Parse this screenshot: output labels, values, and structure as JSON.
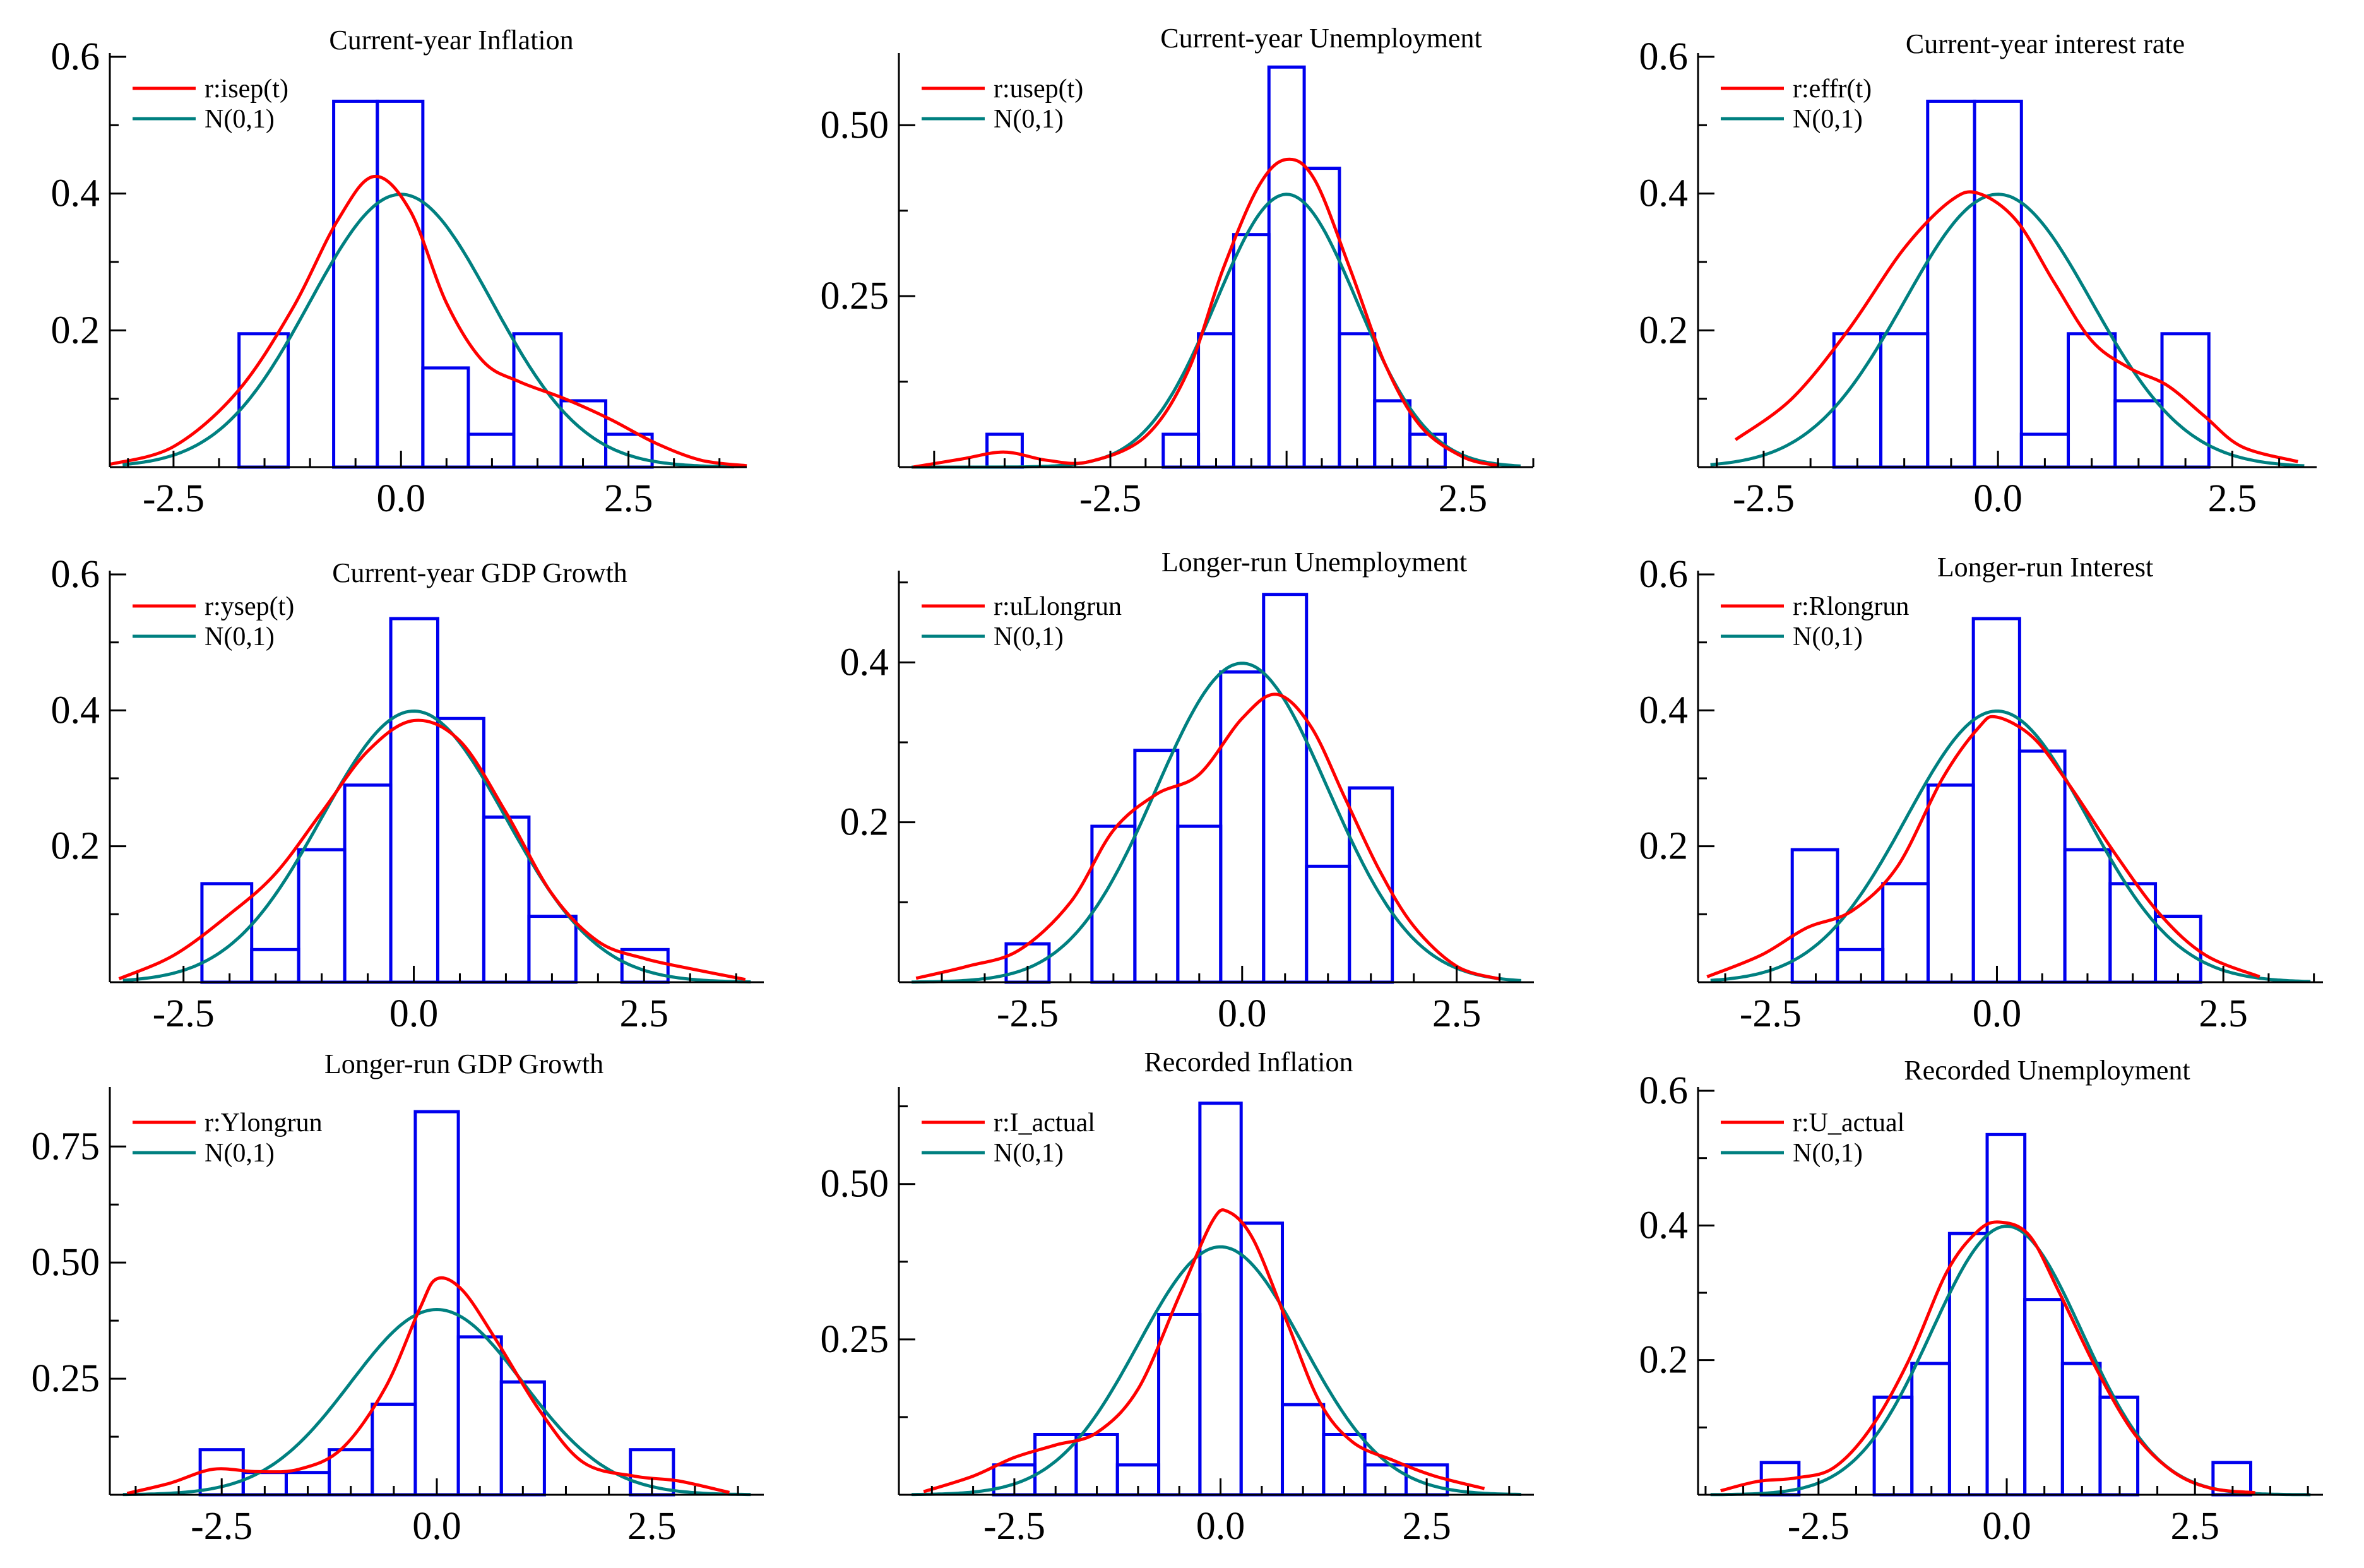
{
  "colors": {
    "histogram": "#0000ee",
    "density": "#ff0000",
    "normal": "#008080"
  },
  "chart_data": [
    {
      "type": "bar",
      "title": "Current-year Inflation",
      "xlim": [
        -3.2,
        3.8
      ],
      "ylim": [
        0,
        0.6
      ],
      "xticks": [
        -2.5,
        0.0,
        2.5
      ],
      "xtick_labels": [
        "-2.5",
        "0.0",
        "2.5"
      ],
      "yticks": [
        0.2,
        0.4,
        0.6
      ],
      "ytick_labels": [
        "0.2",
        "0.4",
        "0.6"
      ],
      "legend": [
        "r:isep(t)",
        "N(0,1)"
      ],
      "bins": [
        [
          -1.78,
          -1.24,
          0.195
        ],
        [
          -1.24,
          -0.74,
          0.0
        ],
        [
          -0.74,
          -0.26,
          0.535
        ],
        [
          -0.26,
          0.24,
          0.535
        ],
        [
          0.24,
          0.74,
          0.145
        ],
        [
          0.74,
          1.24,
          0.048
        ],
        [
          1.24,
          1.76,
          0.195
        ],
        [
          1.76,
          2.25,
          0.097
        ],
        [
          2.25,
          2.76,
          0.048
        ]
      ],
      "density": [
        [
          -3.2,
          0.004
        ],
        [
          -2.5,
          0.03
        ],
        [
          -1.8,
          0.11
        ],
        [
          -1.2,
          0.23
        ],
        [
          -0.7,
          0.36
        ],
        [
          -0.3,
          0.425
        ],
        [
          0.1,
          0.375
        ],
        [
          0.5,
          0.24
        ],
        [
          0.9,
          0.155
        ],
        [
          1.3,
          0.125
        ],
        [
          1.8,
          0.1
        ],
        [
          2.3,
          0.07
        ],
        [
          2.8,
          0.035
        ],
        [
          3.3,
          0.01
        ],
        [
          3.8,
          0.002
        ]
      ]
    },
    {
      "type": "bar",
      "title": "Current-year Unemployment",
      "xlim": [
        -5.5,
        3.5
      ],
      "ylim": [
        0,
        0.6
      ],
      "xticks": [
        -2.5,
        2.5
      ],
      "xtick_labels": [
        "-2.5",
        "2.5"
      ],
      "yticks": [
        0.25,
        0.5
      ],
      "ytick_labels": [
        "0.25",
        "0.50"
      ],
      "legend": [
        "r:usep(t)",
        "N(0,1)"
      ],
      "bins": [
        [
          -4.25,
          -3.75,
          0.048
        ],
        [
          -1.75,
          -1.25,
          0.048
        ],
        [
          -1.25,
          -0.75,
          0.195
        ],
        [
          -0.75,
          -0.25,
          0.34
        ],
        [
          -0.25,
          0.25,
          0.585
        ],
        [
          0.25,
          0.75,
          0.437
        ],
        [
          0.75,
          1.25,
          0.195
        ],
        [
          1.25,
          1.75,
          0.097
        ],
        [
          1.75,
          2.25,
          0.048
        ]
      ],
      "density": [
        [
          -5.3,
          0.0
        ],
        [
          -4.6,
          0.012
        ],
        [
          -4.0,
          0.022
        ],
        [
          -3.4,
          0.01
        ],
        [
          -2.8,
          0.008
        ],
        [
          -2.0,
          0.045
        ],
        [
          -1.4,
          0.14
        ],
        [
          -0.9,
          0.29
        ],
        [
          -0.4,
          0.41
        ],
        [
          0.0,
          0.45
        ],
        [
          0.4,
          0.42
        ],
        [
          0.9,
          0.29
        ],
        [
          1.4,
          0.15
        ],
        [
          1.9,
          0.06
        ],
        [
          2.5,
          0.015
        ],
        [
          3.0,
          0.002
        ]
      ]
    },
    {
      "type": "bar",
      "title": "Current-year interest rate",
      "xlim": [
        -3.2,
        3.4
      ],
      "ylim": [
        0,
        0.6
      ],
      "xticks": [
        -2.5,
        0.0,
        2.5
      ],
      "xtick_labels": [
        "-2.5",
        "0.0",
        "2.5"
      ],
      "yticks": [
        0.2,
        0.4,
        0.6
      ],
      "ytick_labels": [
        "0.2",
        "0.4",
        "0.6"
      ],
      "legend": [
        "r:effr(t)",
        "N(0,1)"
      ],
      "bins": [
        [
          -1.75,
          -1.25,
          0.195
        ],
        [
          -1.25,
          -0.75,
          0.195
        ],
        [
          -0.75,
          -0.25,
          0.535
        ],
        [
          -0.25,
          0.25,
          0.535
        ],
        [
          0.25,
          0.75,
          0.048
        ],
        [
          0.75,
          1.25,
          0.195
        ],
        [
          1.25,
          1.75,
          0.097
        ],
        [
          1.75,
          2.25,
          0.195
        ]
      ],
      "density": [
        [
          -2.8,
          0.04
        ],
        [
          -2.2,
          0.1
        ],
        [
          -1.6,
          0.2
        ],
        [
          -1.0,
          0.32
        ],
        [
          -0.5,
          0.39
        ],
        [
          -0.2,
          0.4
        ],
        [
          0.2,
          0.36
        ],
        [
          0.6,
          0.27
        ],
        [
          1.0,
          0.185
        ],
        [
          1.4,
          0.145
        ],
        [
          1.8,
          0.12
        ],
        [
          2.2,
          0.075
        ],
        [
          2.6,
          0.03
        ],
        [
          3.2,
          0.008
        ]
      ]
    },
    {
      "type": "bar",
      "title": "Current-year GDP Growth",
      "xlim": [
        -3.3,
        3.8
      ],
      "ylim": [
        0,
        0.6
      ],
      "xticks": [
        -2.5,
        0.0,
        2.5
      ],
      "xtick_labels": [
        "-2.5",
        "0.0",
        "2.5"
      ],
      "yticks": [
        0.2,
        0.4,
        0.6
      ],
      "ytick_labels": [
        "0.2",
        "0.4",
        "0.6"
      ],
      "legend": [
        "r:ysep(t)",
        "N(0,1)"
      ],
      "bins": [
        [
          -2.3,
          -1.76,
          0.145
        ],
        [
          -1.76,
          -1.25,
          0.048
        ],
        [
          -1.25,
          -0.75,
          0.195
        ],
        [
          -0.75,
          -0.25,
          0.29
        ],
        [
          -0.25,
          0.26,
          0.535
        ],
        [
          0.26,
          0.76,
          0.388
        ],
        [
          0.76,
          1.25,
          0.243
        ],
        [
          1.25,
          1.76,
          0.097
        ],
        [
          1.76,
          2.26,
          0.0
        ],
        [
          2.26,
          2.76,
          0.048
        ]
      ],
      "density": [
        [
          -3.2,
          0.005
        ],
        [
          -2.6,
          0.04
        ],
        [
          -2.0,
          0.1
        ],
        [
          -1.5,
          0.16
        ],
        [
          -1.0,
          0.25
        ],
        [
          -0.5,
          0.34
        ],
        [
          0.0,
          0.385
        ],
        [
          0.5,
          0.355
        ],
        [
          1.0,
          0.25
        ],
        [
          1.5,
          0.13
        ],
        [
          2.0,
          0.06
        ],
        [
          2.5,
          0.035
        ],
        [
          3.0,
          0.02
        ],
        [
          3.6,
          0.004
        ]
      ]
    },
    {
      "type": "bar",
      "title": "Longer-run Unemployment",
      "xlim": [
        -4.0,
        3.4
      ],
      "ylim": [
        0,
        0.51
      ],
      "xticks": [
        -2.5,
        0.0,
        2.5
      ],
      "xtick_labels": [
        "-2.5",
        "0.0",
        "2.5"
      ],
      "yticks": [
        0.2,
        0.4
      ],
      "ytick_labels": [
        "0.2",
        "0.4"
      ],
      "legend": [
        "r:uLlongrun",
        "N(0,1)"
      ],
      "bins": [
        [
          -2.75,
          -2.25,
          0.048
        ],
        [
          -2.25,
          -1.75,
          0.0
        ],
        [
          -1.75,
          -1.25,
          0.195
        ],
        [
          -1.25,
          -0.75,
          0.29
        ],
        [
          -0.75,
          -0.25,
          0.195
        ],
        [
          -0.25,
          0.25,
          0.388
        ],
        [
          0.25,
          0.75,
          0.485
        ],
        [
          0.75,
          1.25,
          0.145
        ],
        [
          1.25,
          1.75,
          0.243
        ]
      ],
      "density": [
        [
          -3.8,
          0.005
        ],
        [
          -3.2,
          0.02
        ],
        [
          -2.6,
          0.04
        ],
        [
          -2.0,
          0.1
        ],
        [
          -1.5,
          0.19
        ],
        [
          -1.0,
          0.235
        ],
        [
          -0.5,
          0.26
        ],
        [
          0.0,
          0.33
        ],
        [
          0.4,
          0.36
        ],
        [
          0.8,
          0.32
        ],
        [
          1.2,
          0.23
        ],
        [
          1.6,
          0.14
        ],
        [
          2.0,
          0.07
        ],
        [
          2.5,
          0.02
        ],
        [
          3.0,
          0.004
        ]
      ]
    },
    {
      "type": "bar",
      "title": "Longer-run Interest",
      "xlim": [
        -3.3,
        3.6
      ],
      "ylim": [
        0,
        0.6
      ],
      "xticks": [
        -2.5,
        0.0,
        2.5
      ],
      "xtick_labels": [
        "-2.5",
        "0.0",
        "2.5"
      ],
      "yticks": [
        0.2,
        0.4,
        0.6
      ],
      "ytick_labels": [
        "0.2",
        "0.4",
        "0.6"
      ],
      "legend": [
        "r:Rlongrun",
        "N(0,1)"
      ],
      "bins": [
        [
          -2.26,
          -1.76,
          0.195
        ],
        [
          -1.76,
          -1.26,
          0.048
        ],
        [
          -1.26,
          -0.76,
          0.145
        ],
        [
          -0.76,
          -0.26,
          0.29
        ],
        [
          -0.26,
          0.25,
          0.535
        ],
        [
          0.25,
          0.75,
          0.34
        ],
        [
          0.75,
          1.25,
          0.195
        ],
        [
          1.25,
          1.75,
          0.145
        ],
        [
          1.75,
          2.25,
          0.097
        ]
      ],
      "density": [
        [
          -3.2,
          0.008
        ],
        [
          -2.6,
          0.04
        ],
        [
          -2.1,
          0.08
        ],
        [
          -1.6,
          0.105
        ],
        [
          -1.1,
          0.17
        ],
        [
          -0.6,
          0.3
        ],
        [
          -0.2,
          0.375
        ],
        [
          0.0,
          0.39
        ],
        [
          0.4,
          0.36
        ],
        [
          0.8,
          0.29
        ],
        [
          1.3,
          0.19
        ],
        [
          1.8,
          0.1
        ],
        [
          2.3,
          0.04
        ],
        [
          2.9,
          0.008
        ]
      ]
    },
    {
      "type": "bar",
      "title": "Longer-run GDP Growth",
      "xlim": [
        -3.8,
        3.8
      ],
      "ylim": [
        0,
        0.87
      ],
      "xticks": [
        -2.5,
        0.0,
        2.5
      ],
      "xtick_labels": [
        "-2.5",
        "0.0",
        "2.5"
      ],
      "yticks": [
        0.25,
        0.5,
        0.75
      ],
      "ytick_labels": [
        "0.25",
        "0.50",
        "0.75"
      ],
      "legend": [
        "r:Ylongrun",
        "N(0,1)"
      ],
      "bins": [
        [
          -2.75,
          -2.25,
          0.097
        ],
        [
          -2.25,
          -1.75,
          0.048
        ],
        [
          -1.75,
          -1.25,
          0.048
        ],
        [
          -1.25,
          -0.75,
          0.097
        ],
        [
          -0.75,
          -0.25,
          0.195
        ],
        [
          -0.25,
          0.25,
          0.825
        ],
        [
          0.25,
          0.75,
          0.34
        ],
        [
          0.75,
          1.25,
          0.243
        ],
        [
          1.25,
          1.75,
          0.0
        ],
        [
          1.75,
          2.25,
          0.0
        ],
        [
          2.25,
          2.75,
          0.097
        ]
      ],
      "density": [
        [
          -3.6,
          0.003
        ],
        [
          -3.1,
          0.025
        ],
        [
          -2.6,
          0.055
        ],
        [
          -2.1,
          0.05
        ],
        [
          -1.6,
          0.055
        ],
        [
          -1.1,
          0.1
        ],
        [
          -0.6,
          0.23
        ],
        [
          -0.2,
          0.4
        ],
        [
          0.0,
          0.465
        ],
        [
          0.3,
          0.44
        ],
        [
          0.7,
          0.33
        ],
        [
          1.2,
          0.18
        ],
        [
          1.7,
          0.07
        ],
        [
          2.3,
          0.04
        ],
        [
          2.8,
          0.03
        ],
        [
          3.4,
          0.005
        ]
      ]
    },
    {
      "type": "bar",
      "title": "Recorded Inflation",
      "xlim": [
        -3.9,
        3.8
      ],
      "ylim": [
        0,
        0.65
      ],
      "xticks": [
        -2.5,
        0.0,
        2.5
      ],
      "xtick_labels": [
        "-2.5",
        "0.0",
        "2.5"
      ],
      "yticks": [
        0.25,
        0.5
      ],
      "ytick_labels": [
        "0.25",
        "0.50"
      ],
      "legend": [
        "r:I_actual",
        "N(0,1)"
      ],
      "bins": [
        [
          -2.75,
          -2.25,
          0.048
        ],
        [
          -2.25,
          -1.75,
          0.097
        ],
        [
          -1.75,
          -1.25,
          0.097
        ],
        [
          -1.25,
          -0.75,
          0.048
        ],
        [
          -0.75,
          -0.25,
          0.29
        ],
        [
          -0.25,
          0.25,
          0.63
        ],
        [
          0.25,
          0.75,
          0.437
        ],
        [
          0.75,
          1.25,
          0.145
        ],
        [
          1.25,
          1.75,
          0.097
        ],
        [
          1.75,
          2.25,
          0.048
        ],
        [
          2.25,
          2.75,
          0.048
        ]
      ],
      "density": [
        [
          -3.6,
          0.005
        ],
        [
          -3.0,
          0.03
        ],
        [
          -2.5,
          0.06
        ],
        [
          -2.0,
          0.08
        ],
        [
          -1.5,
          0.1
        ],
        [
          -1.0,
          0.17
        ],
        [
          -0.5,
          0.32
        ],
        [
          -0.1,
          0.44
        ],
        [
          0.1,
          0.455
        ],
        [
          0.4,
          0.41
        ],
        [
          0.8,
          0.28
        ],
        [
          1.2,
          0.15
        ],
        [
          1.6,
          0.085
        ],
        [
          2.1,
          0.055
        ],
        [
          2.6,
          0.03
        ],
        [
          3.2,
          0.01
        ]
      ]
    },
    {
      "type": "bar",
      "title": "Recorded Unemployment",
      "xlim": [
        -4.1,
        4.2
      ],
      "ylim": [
        0,
        0.6
      ],
      "xticks": [
        -2.5,
        0.0,
        2.5
      ],
      "xtick_labels": [
        "-2.5",
        "0.0",
        "2.5"
      ],
      "yticks": [
        0.2,
        0.4,
        0.6
      ],
      "ytick_labels": [
        "0.2",
        "0.4",
        "0.6"
      ],
      "legend": [
        "r:U_actual",
        "N(0,1)"
      ],
      "bins": [
        [
          -3.26,
          -2.76,
          0.048
        ],
        [
          -2.76,
          -2.26,
          0.0
        ],
        [
          -2.26,
          -1.76,
          0.0
        ],
        [
          -1.76,
          -1.26,
          0.145
        ],
        [
          -1.26,
          -0.76,
          0.195
        ],
        [
          -0.76,
          -0.26,
          0.388
        ],
        [
          -0.26,
          0.24,
          0.535
        ],
        [
          0.24,
          0.74,
          0.29
        ],
        [
          0.74,
          1.24,
          0.195
        ],
        [
          1.24,
          1.74,
          0.145
        ],
        [
          1.74,
          2.24,
          0.0
        ],
        [
          2.24,
          2.74,
          0.0
        ],
        [
          2.74,
          3.24,
          0.048
        ]
      ],
      "density": [
        [
          -3.8,
          0.006
        ],
        [
          -3.3,
          0.02
        ],
        [
          -2.8,
          0.025
        ],
        [
          -2.3,
          0.04
        ],
        [
          -1.8,
          0.1
        ],
        [
          -1.3,
          0.2
        ],
        [
          -0.8,
          0.33
        ],
        [
          -0.4,
          0.39
        ],
        [
          -0.1,
          0.405
        ],
        [
          0.3,
          0.385
        ],
        [
          0.7,
          0.3
        ],
        [
          1.2,
          0.185
        ],
        [
          1.7,
          0.09
        ],
        [
          2.2,
          0.035
        ],
        [
          2.7,
          0.01
        ],
        [
          3.3,
          0.003
        ]
      ]
    }
  ]
}
